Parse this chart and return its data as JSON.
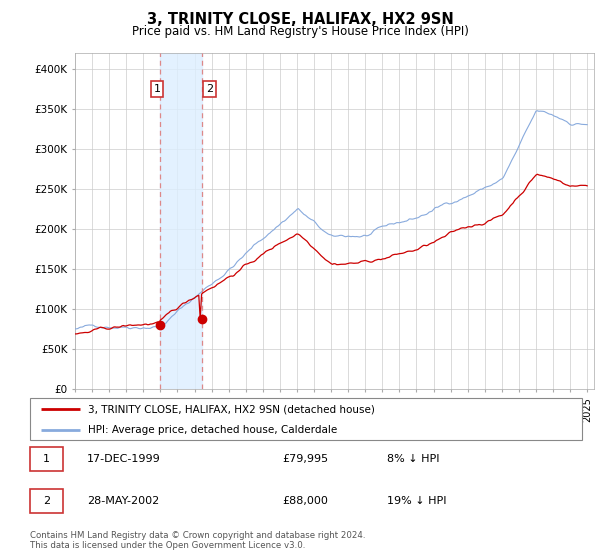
{
  "title": "3, TRINITY CLOSE, HALIFAX, HX2 9SN",
  "subtitle": "Price paid vs. HM Land Registry's House Price Index (HPI)",
  "ylim": [
    0,
    420000
  ],
  "yticks": [
    0,
    50000,
    100000,
    150000,
    200000,
    250000,
    300000,
    350000,
    400000
  ],
  "ytick_labels": [
    "£0",
    "£50K",
    "£100K",
    "£150K",
    "£200K",
    "£250K",
    "£300K",
    "£350K",
    "£400K"
  ],
  "background_color": "#ffffff",
  "grid_color": "#cccccc",
  "hpi_color": "#88aadd",
  "price_color": "#cc0000",
  "purchase1_price": 79995,
  "purchase2_price": 88000,
  "legend_line1": "3, TRINITY CLOSE, HALIFAX, HX2 9SN (detached house)",
  "legend_line2": "HPI: Average price, detached house, Calderdale",
  "table_row1": [
    "1",
    "17-DEC-1999",
    "£79,995",
    "8% ↓ HPI"
  ],
  "table_row2": [
    "2",
    "28-MAY-2002",
    "£88,000",
    "19% ↓ HPI"
  ],
  "footnote": "Contains HM Land Registry data © Crown copyright and database right 2024.\nThis data is licensed under the Open Government Licence v3.0.",
  "purchase1_x": 1999.958,
  "purchase2_x": 2002.411,
  "vline1_x": 1999.958,
  "vline2_x": 2002.411,
  "xlim_left": 1995.0,
  "xlim_right": 2025.4
}
